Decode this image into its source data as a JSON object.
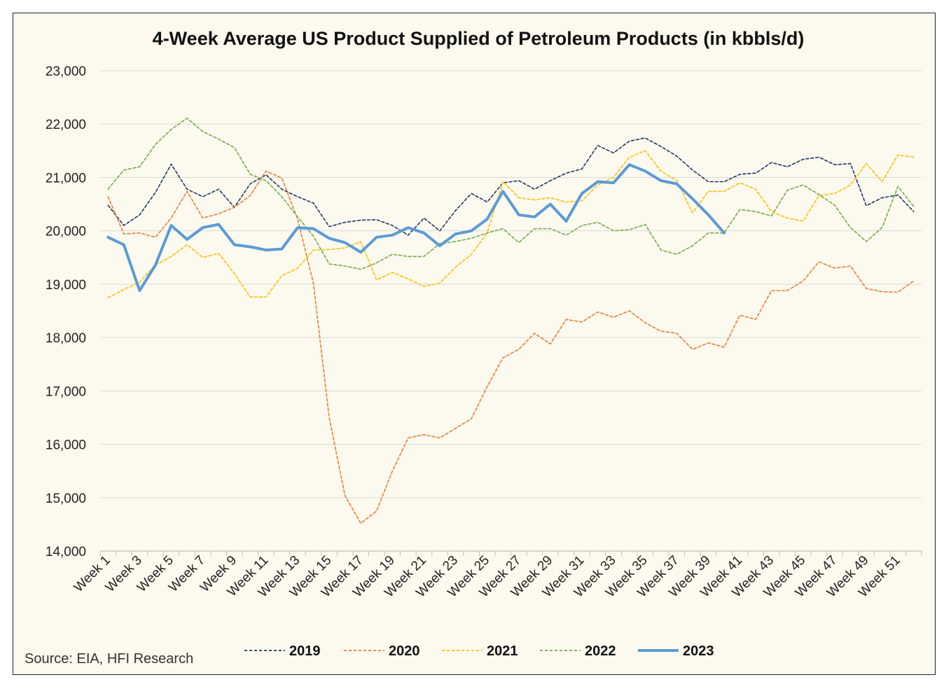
{
  "chart_data": {
    "type": "line",
    "title": "4-Week Average US Product Supplied of Petroleum Products (in kbbls/d)",
    "xlabel": "",
    "ylabel": "",
    "ylim": [
      14000,
      23000
    ],
    "yticks": [
      14000,
      15000,
      16000,
      17000,
      18000,
      19000,
      20000,
      21000,
      22000,
      23000
    ],
    "ytick_labels": [
      "14,000",
      "15,000",
      "16,000",
      "17,000",
      "18,000",
      "19,000",
      "20,000",
      "21,000",
      "22,000",
      "23,000"
    ],
    "categories_count": 52,
    "x_tick_labels": [
      "Week 1",
      "Week 3",
      "Week 5",
      "Week 7",
      "Week 9",
      "Week 11",
      "Week 13",
      "Week 15",
      "Week 17",
      "Week 19",
      "Week 21",
      "Week 23",
      "Week 25",
      "Week 27",
      "Week 29",
      "Week 31",
      "Week 33",
      "Week 35",
      "Week 37",
      "Week 39",
      "Week 41",
      "Week 43",
      "Week 45",
      "Week 47",
      "Week 49",
      "Week 51"
    ],
    "grid": true,
    "legend_position": "bottom",
    "source": "Source: EIA, HFI Research",
    "series": [
      {
        "name": "2019",
        "color": "#1f3864",
        "style": "dashed",
        "values": [
          20480,
          20100,
          20300,
          20720,
          21250,
          20780,
          20640,
          20780,
          20440,
          20880,
          21050,
          20780,
          20640,
          20520,
          20080,
          20160,
          20200,
          20210,
          20100,
          19920,
          20240,
          20000,
          20380,
          20700,
          20540,
          20900,
          20940,
          20780,
          20940,
          21080,
          21160,
          21600,
          21460,
          21680,
          21740,
          21580,
          21400,
          21140,
          20920,
          20920,
          21060,
          21080,
          21280,
          21200,
          21340,
          21380,
          21240,
          21260,
          20470,
          20620,
          20670,
          20360
        ]
      },
      {
        "name": "2020",
        "color": "#ed7d31",
        "style": "dashed",
        "values": [
          20640,
          19940,
          19960,
          19880,
          20240,
          20740,
          20240,
          20320,
          20440,
          20660,
          21120,
          20990,
          20220,
          19020,
          16500,
          15040,
          14520,
          14750,
          15500,
          16120,
          16180,
          16120,
          16300,
          16480,
          17080,
          17620,
          17780,
          18080,
          17880,
          18340,
          18290,
          18480,
          18380,
          18500,
          18280,
          18120,
          18080,
          17780,
          17900,
          17820,
          18420,
          18340,
          18880,
          18880,
          19060,
          19420,
          19300,
          19340,
          18920,
          18860,
          18850,
          19060
        ]
      },
      {
        "name": "2021",
        "color": "#ffc000",
        "style": "dashed",
        "values": [
          18750,
          18900,
          19040,
          19360,
          19520,
          19740,
          19500,
          19580,
          19200,
          18760,
          18760,
          19160,
          19300,
          19640,
          19650,
          19680,
          19800,
          19080,
          19220,
          19100,
          18960,
          19020,
          19320,
          19560,
          19960,
          20920,
          20620,
          20580,
          20620,
          20540,
          20560,
          20860,
          21000,
          21380,
          21500,
          21120,
          20940,
          20340,
          20740,
          20740,
          20900,
          20780,
          20360,
          20240,
          20180,
          20660,
          20700,
          20860,
          21260,
          20920,
          21420,
          21380
        ]
      },
      {
        "name": "2022",
        "color": "#70ad47",
        "style": "dashed",
        "values": [
          20780,
          21140,
          21200,
          21620,
          21900,
          22110,
          21860,
          21720,
          21560,
          21060,
          20940,
          20640,
          20260,
          19900,
          19380,
          19340,
          19280,
          19400,
          19560,
          19520,
          19520,
          19760,
          19800,
          19860,
          19960,
          20040,
          19780,
          20040,
          20040,
          19920,
          20100,
          20160,
          20000,
          20020,
          20120,
          19640,
          19560,
          19720,
          19960,
          19960,
          20400,
          20360,
          20280,
          20760,
          20860,
          20680,
          20480,
          20060,
          19800,
          20060,
          20830,
          20460
        ]
      },
      {
        "name": "2023",
        "color": "#5b9bd5",
        "style": "solid",
        "values": [
          19880,
          19740,
          18880,
          19360,
          20100,
          19840,
          20060,
          20120,
          19740,
          19700,
          19640,
          19660,
          20060,
          20040,
          19860,
          19780,
          19600,
          19880,
          19920,
          20060,
          19960,
          19720,
          19940,
          20000,
          20220,
          20740,
          20300,
          20260,
          20500,
          20180,
          20700,
          20920,
          20900,
          21240,
          21120,
          20940,
          20880,
          20600,
          20300,
          19960
        ]
      }
    ]
  }
}
